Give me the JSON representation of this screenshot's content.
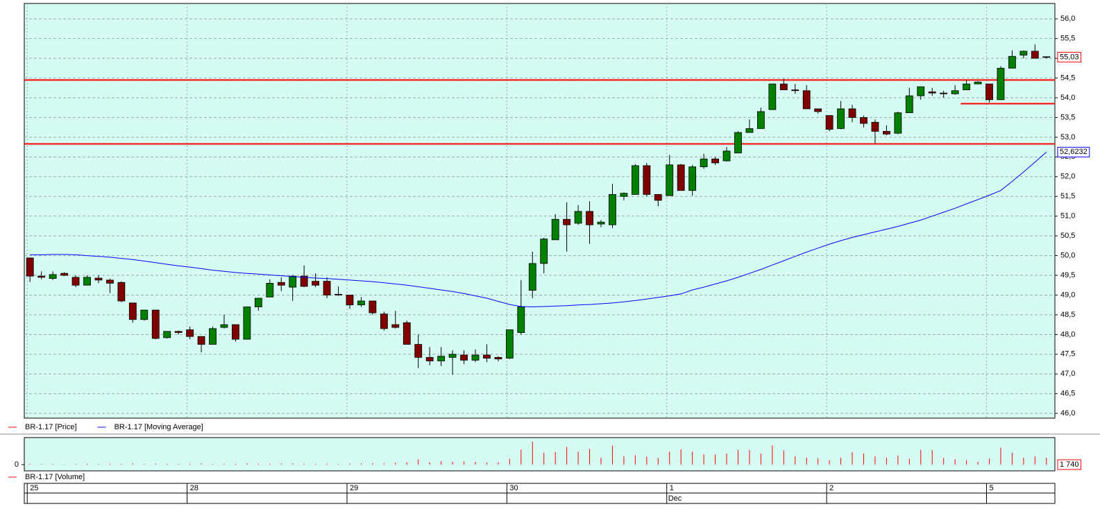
{
  "chart_data": [
    {
      "type": "candlestick",
      "ylim": [
        45.88,
        56.39
      ],
      "yticks": [
        {
          "value": 46.0,
          "label": "46,0"
        },
        {
          "value": 46.5,
          "label": "46,5"
        },
        {
          "value": 47.0,
          "label": "47,0"
        },
        {
          "value": 47.5,
          "label": "47,5"
        },
        {
          "value": 48.0,
          "label": "48,0"
        },
        {
          "value": 48.5,
          "label": "48,5"
        },
        {
          "value": 49.0,
          "label": "49,0"
        },
        {
          "value": 49.5,
          "label": "49,5"
        },
        {
          "value": 50.0,
          "label": "50,0"
        },
        {
          "value": 50.5,
          "label": "50,5"
        },
        {
          "value": 51.0,
          "label": "51,0"
        },
        {
          "value": 51.5,
          "label": "51,5"
        },
        {
          "value": 52.0,
          "label": "52,0"
        },
        {
          "value": 52.5,
          "label": "52,5"
        },
        {
          "value": 53.0,
          "label": "53,0"
        },
        {
          "value": 53.5,
          "label": "53,5"
        },
        {
          "value": 54.0,
          "label": "54,0"
        },
        {
          "value": 54.5,
          "label": "54,5"
        },
        {
          "value": 55.0,
          "label": "55,0"
        },
        {
          "value": 55.5,
          "label": "55,5"
        },
        {
          "value": 56.0,
          "label": "56,0"
        }
      ],
      "grid": true,
      "hlines": [
        {
          "value": 54.45,
          "color": "#ff0000"
        },
        {
          "value": 52.83,
          "color": "#ff0000"
        },
        {
          "value": 53.85,
          "color": "#ff0000",
          "start": 82
        }
      ],
      "series": [
        {
          "name": "BR-1.17 [Price]",
          "color": "#ff0000",
          "up_color": "#008000",
          "down_color": "#800000",
          "last_label": "55,03",
          "open": [
            49.94,
            49.48,
            49.42,
            49.55,
            49.45,
            49.25,
            49.43,
            49.38,
            49.32,
            48.8,
            48.38,
            48.62,
            47.92,
            48.08,
            48.12,
            47.95,
            47.75,
            48.18,
            48.25,
            47.88,
            48.7,
            48.95,
            49.32,
            49.2,
            49.48,
            49.35,
            49.35,
            49.02,
            49.0,
            48.75,
            48.85,
            48.52,
            48.25,
            48.3,
            47.75,
            47.42,
            47.33,
            47.42,
            47.48,
            47.35,
            47.48,
            47.42,
            47.4,
            48.05,
            49.12,
            49.8,
            50.4,
            50.92,
            50.82,
            51.12,
            50.8,
            50.78,
            51.5,
            51.55,
            52.28,
            51.55,
            51.52,
            52.3,
            51.65,
            52.25,
            52.45,
            52.4,
            52.6,
            53.12,
            53.22,
            53.7,
            54.35,
            54.2,
            54.18,
            53.72,
            53.55,
            53.22,
            53.72,
            53.5,
            53.38,
            53.15,
            53.1,
            53.62,
            54.05,
            54.15,
            54.12,
            54.1,
            54.2,
            54.35,
            54.35,
            53.95,
            54.75,
            55.08,
            55.18,
            55.04
          ],
          "high": [
            49.95,
            49.6,
            49.6,
            49.58,
            49.5,
            49.5,
            49.5,
            49.42,
            49.35,
            48.8,
            48.62,
            48.62,
            48.08,
            48.1,
            48.2,
            47.95,
            48.2,
            48.5,
            48.25,
            48.7,
            48.92,
            49.4,
            49.45,
            49.5,
            49.75,
            49.55,
            49.45,
            49.22,
            49.0,
            48.95,
            48.85,
            48.58,
            48.6,
            48.35,
            48.0,
            47.68,
            47.68,
            47.6,
            47.6,
            47.62,
            47.75,
            47.45,
            48.12,
            49.38,
            50.1,
            50.45,
            51.05,
            51.35,
            51.28,
            51.38,
            50.9,
            51.82,
            51.6,
            52.32,
            52.35,
            51.55,
            52.55,
            52.32,
            52.3,
            52.58,
            52.5,
            52.75,
            53.15,
            53.45,
            53.75,
            54.35,
            54.48,
            54.35,
            54.32,
            53.72,
            53.55,
            53.92,
            53.82,
            53.55,
            53.45,
            53.3,
            53.65,
            54.25,
            54.28,
            54.25,
            54.18,
            54.32,
            54.45,
            54.42,
            54.35,
            54.8,
            55.2,
            55.2,
            55.35,
            55.05
          ],
          "low": [
            49.33,
            49.4,
            49.38,
            49.48,
            49.2,
            49.25,
            49.3,
            49.05,
            48.82,
            48.3,
            48.35,
            47.88,
            47.9,
            48.0,
            47.88,
            47.55,
            47.75,
            48.15,
            47.82,
            47.88,
            48.6,
            48.95,
            49.1,
            48.85,
            49.2,
            49.2,
            48.92,
            48.98,
            48.65,
            48.7,
            48.5,
            48.1,
            48.15,
            47.75,
            47.15,
            47.22,
            47.2,
            46.98,
            47.25,
            47.3,
            47.3,
            47.32,
            47.38,
            48.0,
            48.92,
            49.55,
            50.4,
            50.1,
            50.78,
            50.3,
            50.72,
            50.7,
            51.4,
            51.55,
            51.5,
            51.25,
            51.52,
            51.65,
            51.52,
            52.2,
            52.3,
            52.38,
            52.6,
            53.12,
            53.22,
            53.7,
            54.2,
            54.1,
            53.72,
            53.6,
            53.15,
            53.2,
            53.38,
            53.25,
            52.85,
            53.05,
            53.08,
            53.62,
            53.95,
            54.05,
            54.0,
            54.08,
            54.2,
            54.35,
            53.88,
            53.95,
            54.75,
            55.0,
            55.0,
            55.0
          ],
          "close": [
            49.48,
            49.45,
            49.52,
            49.5,
            49.25,
            49.45,
            49.38,
            49.3,
            48.85,
            48.38,
            48.62,
            47.9,
            48.08,
            48.05,
            47.95,
            47.75,
            48.15,
            48.25,
            47.88,
            48.7,
            48.92,
            49.3,
            49.25,
            49.48,
            49.22,
            49.25,
            49.0,
            49.0,
            48.75,
            48.85,
            48.55,
            48.15,
            48.18,
            47.75,
            47.42,
            47.33,
            47.45,
            47.5,
            47.35,
            47.48,
            47.4,
            47.38,
            48.12,
            48.7,
            49.8,
            50.42,
            50.92,
            50.78,
            51.12,
            50.78,
            50.85,
            51.55,
            51.58,
            52.28,
            51.55,
            51.4,
            52.3,
            51.65,
            52.25,
            52.45,
            52.35,
            52.65,
            53.12,
            53.22,
            53.65,
            54.35,
            54.2,
            54.18,
            53.72,
            53.65,
            53.2,
            53.72,
            53.5,
            53.35,
            53.15,
            53.08,
            53.62,
            54.05,
            54.28,
            54.12,
            54.1,
            54.18,
            54.35,
            54.4,
            53.95,
            54.75,
            55.05,
            55.18,
            55.0,
            55.03
          ]
        },
        {
          "name": "BR-1.17 [Moving Average]",
          "type": "line",
          "color": "#0000ff",
          "last_label": "52,6232",
          "values": [
            50.02,
            50.02,
            50.03,
            50.03,
            50.02,
            50.0,
            49.98,
            49.96,
            49.93,
            49.9,
            49.86,
            49.82,
            49.78,
            49.74,
            49.71,
            49.67,
            49.63,
            49.6,
            49.57,
            49.55,
            49.53,
            49.51,
            49.49,
            49.47,
            49.45,
            49.43,
            49.42,
            49.4,
            49.38,
            49.36,
            49.34,
            49.31,
            49.28,
            49.25,
            49.21,
            49.17,
            49.13,
            49.09,
            49.04,
            48.98,
            48.92,
            48.84,
            48.76,
            48.71,
            48.7,
            48.71,
            48.72,
            48.73,
            48.75,
            48.76,
            48.78,
            48.8,
            48.83,
            48.86,
            48.9,
            48.94,
            48.98,
            49.03,
            49.13,
            49.2,
            49.28,
            49.36,
            49.45,
            49.55,
            49.65,
            49.76,
            49.87,
            49.98,
            50.09,
            50.19,
            50.29,
            50.38,
            50.46,
            50.53,
            50.6,
            50.67,
            50.74,
            50.82,
            50.9,
            51.0,
            51.1,
            51.2,
            51.31,
            51.42,
            51.53,
            51.65,
            51.88,
            52.12,
            52.37,
            52.6232
          ]
        }
      ]
    },
    {
      "type": "bar",
      "categories": [
        "25",
        null,
        null,
        null,
        null,
        null,
        null,
        null,
        null,
        null,
        null,
        null,
        null,
        null,
        "28",
        null,
        null,
        null,
        null,
        null,
        null,
        null,
        null,
        null,
        null,
        null,
        null,
        null,
        "29",
        null,
        null,
        null,
        null,
        null,
        null,
        null,
        null,
        null,
        null,
        null,
        null,
        null,
        "30",
        null,
        null,
        null,
        null,
        null,
        null,
        null,
        null,
        null,
        null,
        null,
        null,
        null,
        "1",
        null,
        null,
        null,
        null,
        null,
        null,
        null,
        null,
        null,
        null,
        null,
        null,
        null,
        "2",
        null,
        null,
        null,
        null,
        null,
        null,
        null,
        null,
        null,
        null,
        null,
        null,
        null,
        "5",
        null,
        null,
        null,
        null,
        null
      ],
      "sublabels": [
        null,
        null,
        null,
        null,
        null,
        null,
        null,
        null,
        null,
        null,
        null,
        null,
        null,
        null,
        null,
        null,
        null,
        null,
        null,
        null,
        null,
        null,
        null,
        null,
        null,
        null,
        null,
        null,
        null,
        null,
        null,
        null,
        null,
        null,
        null,
        null,
        null,
        null,
        null,
        null,
        null,
        null,
        null,
        null,
        null,
        null,
        null,
        null,
        null,
        null,
        null,
        null,
        null,
        null,
        null,
        null,
        "Dec",
        null,
        null,
        null,
        null,
        null,
        null,
        null,
        null,
        null,
        null,
        null,
        null,
        null,
        null,
        null,
        null,
        null,
        null,
        null,
        null,
        null,
        null,
        null,
        null,
        null,
        null,
        null,
        null,
        null,
        null,
        null,
        null,
        null
      ],
      "ylim": [
        0,
        6500
      ],
      "yticks": [
        0
      ],
      "series": [
        {
          "name": "BR-1.17 [Volume]",
          "color": "#ff0000",
          "last_label": "1 740",
          "values": [
            200,
            150,
            150,
            100,
            150,
            200,
            150,
            250,
            200,
            300,
            200,
            250,
            200,
            150,
            250,
            300,
            150,
            200,
            200,
            300,
            250,
            250,
            300,
            300,
            250,
            200,
            250,
            150,
            250,
            300,
            350,
            300,
            500,
            600,
            1300,
            600,
            900,
            700,
            800,
            700,
            500,
            600,
            1500,
            3800,
            5800,
            3000,
            3200,
            4500,
            3300,
            4000,
            1800,
            4800,
            2100,
            2400,
            2000,
            1700,
            3300,
            3900,
            3300,
            2600,
            2600,
            2800,
            3700,
            3700,
            2800,
            4900,
            3600,
            2100,
            1800,
            1600,
            1100,
            1800,
            3200,
            2800,
            2100,
            1800,
            2300,
            1500,
            3700,
            3700,
            1700,
            1400,
            1100,
            700,
            1500,
            4300,
            3000,
            1800,
            2100,
            1740
          ]
        }
      ]
    }
  ]
}
